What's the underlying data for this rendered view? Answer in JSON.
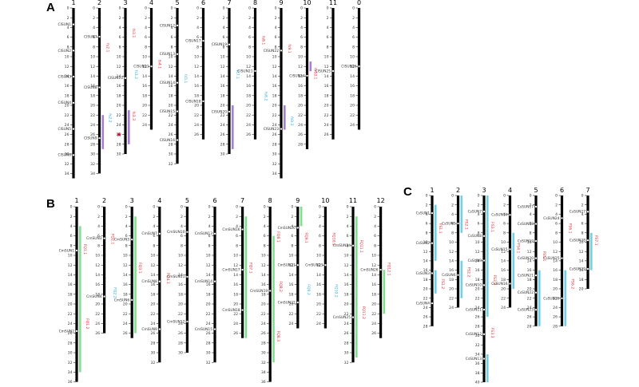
{
  "colors": {
    "chromosome": "#000000",
    "qtl_red": "#e8252d",
    "qtl_blue": "#29a9e0",
    "bar_purple": "#a67fd1",
    "bar_green": "#7ee08c",
    "bar_cyan": "#6fd0e8",
    "marker": "#c8102e"
  },
  "panels": [
    {
      "letter": "A",
      "chromosomes": [
        {
          "label": "1",
          "length": 35,
          "genes": [
            "CISUN1",
            "CISUN2",
            "CISUN3",
            "CISUN4",
            "CISUN5",
            "CISUN6"
          ],
          "qtls": []
        },
        {
          "label": "2",
          "length": 34,
          "genes": [
            "CISUN7",
            "CISUN8",
            "CISUN9"
          ],
          "qtls": [
            {
              "name": "fs2.1",
              "color": "red"
            },
            {
              "name": "fs2.2",
              "color": "blue"
            }
          ]
        },
        {
          "label": "3",
          "length": 30,
          "genes": [
            "CISUN10"
          ],
          "qtls": [
            {
              "name": "fs3.1",
              "color": "red"
            },
            {
              "name": "fs3.2",
              "color": "blue"
            },
            {
              "name": "fs3.3",
              "color": "red"
            }
          ]
        },
        {
          "label": "4",
          "length": 25,
          "genes": [
            "CISUN11"
          ],
          "qtls": [
            {
              "name": "fs4.1",
              "color": "red"
            }
          ]
        },
        {
          "label": "5",
          "length": 32,
          "genes": [
            "CISUN12",
            "CISUN13",
            "CISUN14",
            "CISUN15",
            "CISUN16"
          ],
          "qtls": [
            {
              "name": "fs5.1",
              "color": "blue"
            }
          ]
        },
        {
          "label": "6",
          "length": 27,
          "genes": [
            "CISUN17",
            "CISUN18"
          ],
          "qtls": []
        },
        {
          "label": "7",
          "length": 30,
          "genes": [
            "CISUN19",
            "CISUN20"
          ],
          "qtls": [
            {
              "name": "fs7.1",
              "color": "blue"
            }
          ]
        },
        {
          "label": "8",
          "length": 27,
          "genes": [
            "CISUN21"
          ],
          "qtls": [
            {
              "name": "fs8.1",
              "color": "red"
            },
            {
              "name": "fs8.2",
              "color": "blue"
            }
          ]
        },
        {
          "label": "9",
          "length": 35,
          "genes": [
            "CISUN22",
            "CISUN23"
          ],
          "qtls": [
            {
              "name": "fs9.1",
              "color": "red"
            },
            {
              "name": "fs9.2",
              "color": "blue"
            }
          ]
        },
        {
          "label": "10",
          "length": 29,
          "genes": [
            "CISUN24"
          ],
          "qtls": [
            {
              "name": "fs10.1",
              "color": "red"
            }
          ]
        },
        {
          "label": "11",
          "length": 27,
          "genes": [
            "CISUN25"
          ],
          "qtls": []
        },
        {
          "label": "0",
          "length": 25,
          "genes": [
            "CISUN26"
          ],
          "qtls": []
        }
      ]
    },
    {
      "letter": "B",
      "chromosomes": [
        {
          "label": "1",
          "length": 36,
          "genes": [
            "CmSUN1",
            "CmSUN2"
          ],
          "qtls": [
            {
              "name": "FQ1.1",
              "color": "red"
            },
            {
              "name": "FQ1.2",
              "color": "red"
            }
          ]
        },
        {
          "label": "2",
          "length": 26,
          "genes": [
            "CmSUN3",
            "CmSUN4"
          ],
          "qtls": [
            {
              "name": "FQ2.1",
              "color": "red"
            },
            {
              "name": "FQ2.2",
              "color": "blue"
            }
          ]
        },
        {
          "label": "3",
          "length": 27,
          "genes": [
            "CmSUN5",
            "CmSUN6"
          ],
          "qtls": [
            {
              "name": "FQ3.1",
              "color": "red"
            }
          ]
        },
        {
          "label": "4",
          "length": 32,
          "genes": [
            "CmSUN7",
            "CmSUN8",
            "CmSUN9"
          ],
          "qtls": [
            {
              "name": "FQ4.1",
              "color": "red"
            }
          ]
        },
        {
          "label": "5",
          "length": 30,
          "genes": [
            "CmSUN10",
            "CmSUN11",
            "CmSUN12"
          ],
          "qtls": []
        },
        {
          "label": "6",
          "length": 32,
          "genes": [
            "CmSUN13",
            "CmSUN14",
            "CmSUN15"
          ],
          "qtls": []
        },
        {
          "label": "7",
          "length": 27,
          "genes": [
            "CmSUN16",
            "CmSUN17",
            "CmSUN18"
          ],
          "qtls": [
            {
              "name": "FQ7.1",
              "color": "red"
            }
          ]
        },
        {
          "label": "8",
          "length": 36,
          "genes": [
            "CmSUN19"
          ],
          "qtls": [
            {
              "name": "FQ8.1",
              "color": "red"
            },
            {
              "name": "FQ8.2",
              "color": "red"
            },
            {
              "name": "FQ8.3",
              "color": "red"
            }
          ]
        },
        {
          "label": "9",
          "length": 25,
          "genes": [
            "CmSUN20",
            "CmSUN21",
            "CmSUN22"
          ],
          "qtls": [
            {
              "name": "FQ9.1",
              "color": "red"
            },
            {
              "name": "FQ9.2",
              "color": "blue"
            }
          ]
        },
        {
          "label": "10",
          "length": 25,
          "genes": [
            "CmSUN23"
          ],
          "qtls": [
            {
              "name": "FQ10.1",
              "color": "red"
            },
            {
              "name": "FQ10.2",
              "color": "blue"
            }
          ]
        },
        {
          "label": "11",
          "length": 32,
          "genes": [
            "CmSUN24",
            "CmSUN25"
          ],
          "qtls": [
            {
              "name": "FQ11.1",
              "color": "red"
            },
            {
              "name": "FQ11.2",
              "color": "red"
            }
          ]
        },
        {
          "label": "12",
          "length": 27,
          "genes": [
            "CmSUN26"
          ],
          "qtls": [
            {
              "name": "FQ12.1",
              "color": "red"
            }
          ]
        }
      ]
    },
    {
      "letter": "C",
      "chromosomes": [
        {
          "label": "1",
          "length": 28,
          "genes": [
            "CsSUN1",
            "CsSUN2",
            "CsSUN3",
            "CsSUN4"
          ],
          "qtls": [
            {
              "name": "FS1.1",
              "color": "red"
            },
            {
              "name": "FS1.2",
              "color": "red"
            }
          ]
        },
        {
          "label": "2",
          "length": 24,
          "genes": [
            "CsSUN5",
            "CsSUN6"
          ],
          "qtls": [
            {
              "name": "FS2.1",
              "color": "red"
            },
            {
              "name": "FS2.2",
              "color": "red"
            }
          ]
        },
        {
          "label": "3",
          "length": 40,
          "genes": [
            "CsSUN7",
            "CsSUN8",
            "CsSUN9",
            "CsSUN10",
            "CsSUN11",
            "CsSUN12",
            "CsSUN13"
          ],
          "qtls": [
            {
              "name": "FS3.1",
              "color": "red"
            },
            {
              "name": "FS3.2",
              "color": "red"
            },
            {
              "name": "FS3.3",
              "color": "red"
            }
          ]
        },
        {
          "label": "4",
          "length": 24,
          "genes": [
            "CsSUN14",
            "CsSUN15",
            "CsSUN16"
          ],
          "qtls": [
            {
              "name": "FS4.1",
              "color": "red"
            }
          ]
        },
        {
          "label": "5",
          "length": 28,
          "genes": [
            "CsSUN17",
            "CsSUN18",
            "CsSUN19",
            "CsSUN20",
            "CsSUN21",
            "CsSUN22",
            "CsSUN23"
          ],
          "qtls": [
            {
              "name": "FS5.1",
              "color": "red"
            }
          ]
        },
        {
          "label": "6",
          "length": 28,
          "genes": [
            "CsSUN24",
            "CsSUN25",
            "CsSUN26"
          ],
          "qtls": [
            {
              "name": "FS6.1",
              "color": "red"
            },
            {
              "name": "FS6.2",
              "color": "red"
            }
          ]
        },
        {
          "label": "7",
          "length": 20,
          "genes": [
            "CsSUN27",
            "CsSUN28",
            "CsSUN29"
          ],
          "qtls": [
            {
              "name": "FS7.1",
              "color": "red"
            }
          ]
        }
      ]
    }
  ]
}
